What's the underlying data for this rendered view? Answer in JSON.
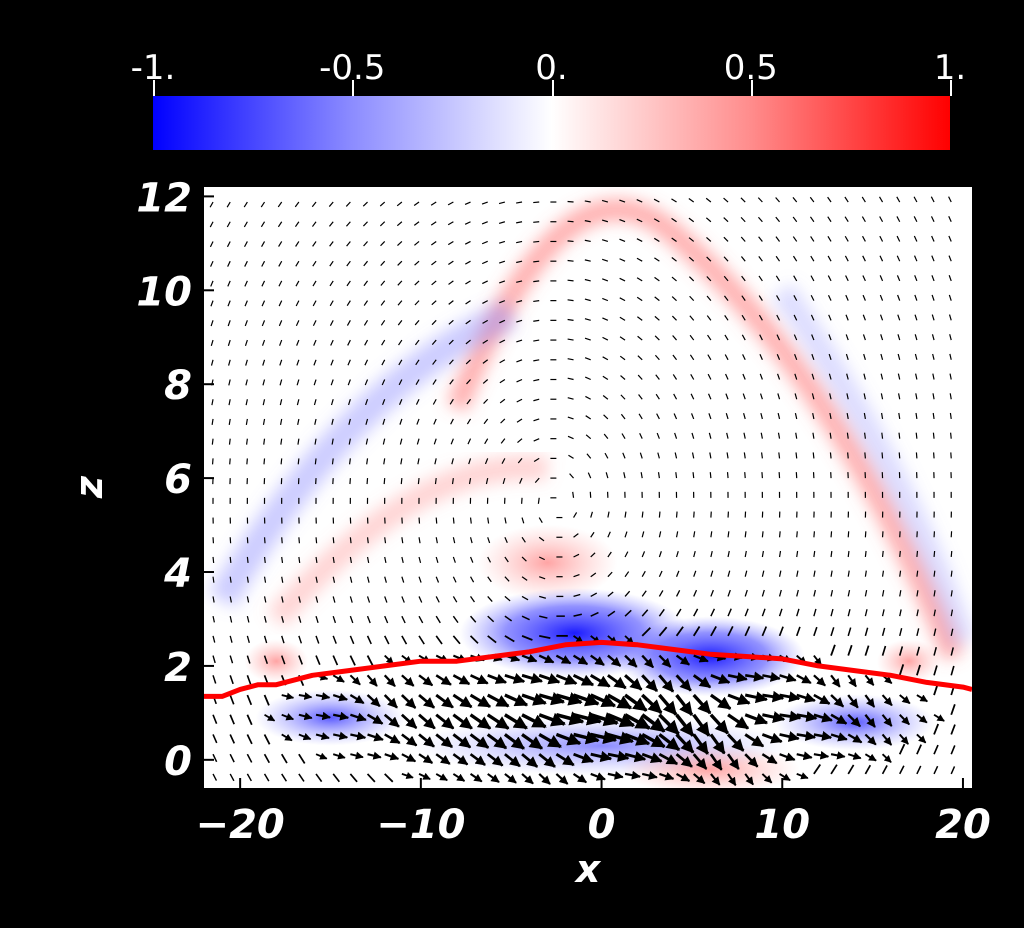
{
  "chart_data": {
    "type": "heatmap",
    "title": "",
    "xlabel": "x",
    "ylabel": "z",
    "xlim": [
      -22,
      20.5
    ],
    "ylim": [
      -0.6,
      12.2
    ],
    "x_ticks": [
      "−20",
      "−10",
      "0",
      "10",
      "20"
    ],
    "x_tick_values": [
      -20,
      -10,
      0,
      10,
      20
    ],
    "y_ticks": [
      "0",
      "2",
      "4",
      "6",
      "8",
      "10",
      "12"
    ],
    "y_tick_values": [
      0,
      2,
      4,
      6,
      8,
      10,
      12
    ],
    "colorbar": {
      "ticks": [
        "-1.",
        "-0.5",
        "0.",
        "0.5",
        "1."
      ],
      "tick_values": [
        -1,
        -0.5,
        0,
        0.5,
        1
      ],
      "range": [
        -1,
        1
      ],
      "colors": {
        "low": "#0000ff",
        "mid": "#ffffff",
        "high": "#ff0000"
      }
    },
    "overlays": {
      "vector_field": {
        "color": "#000000"
      },
      "red_curve": {
        "color": "#ff0000",
        "x": [
          -22,
          -21,
          -20,
          -19,
          -18,
          -16,
          -14,
          -12,
          -10,
          -8,
          -6,
          -4,
          -2,
          0,
          2,
          4,
          6,
          8,
          10,
          12,
          14,
          16,
          18,
          20,
          20.5
        ],
        "z": [
          1.35,
          1.35,
          1.5,
          1.6,
          1.6,
          1.8,
          1.9,
          2.0,
          2.1,
          2.1,
          2.2,
          2.3,
          2.45,
          2.5,
          2.45,
          2.35,
          2.25,
          2.2,
          2.15,
          2.0,
          1.9,
          1.8,
          1.65,
          1.55,
          1.5
        ]
      }
    }
  }
}
